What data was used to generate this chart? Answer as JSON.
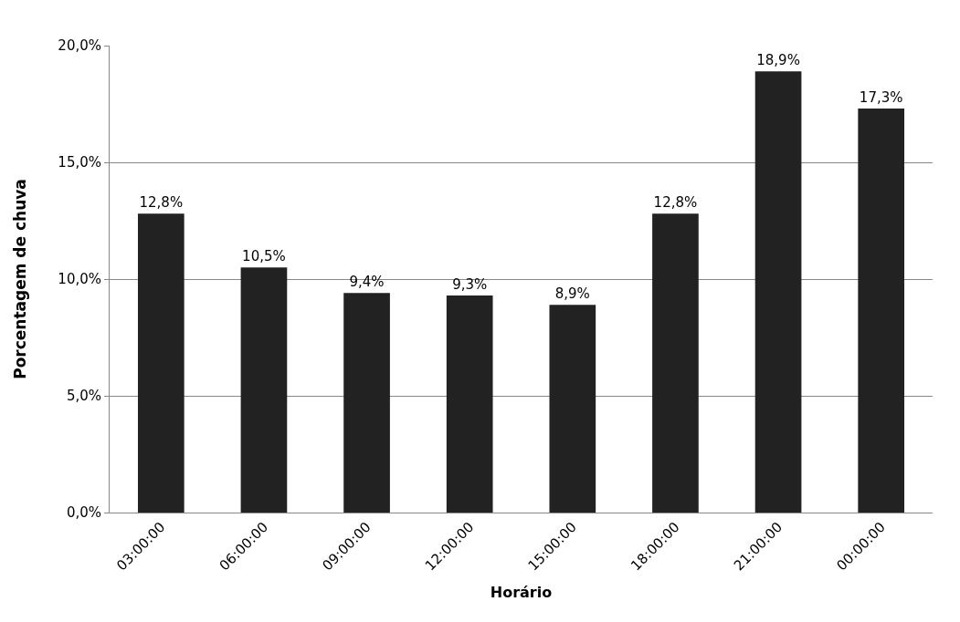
{
  "chart_data": {
    "type": "bar",
    "xlabel": "Horário",
    "ylabel": "Porcentagem de chuva",
    "categories": [
      "03:00:00",
      "06:00:00",
      "09:00:00",
      "12:00:00",
      "15:00:00",
      "18:00:00",
      "21:00:00",
      "00:00:00"
    ],
    "values": [
      12.8,
      10.5,
      9.4,
      9.3,
      8.9,
      12.8,
      18.9,
      17.3
    ],
    "value_labels": [
      "12,8%",
      "10,5%",
      "9,4%",
      "9,3%",
      "8,9%",
      "12,8%",
      "18,9%",
      "17,3%"
    ],
    "color": "#222222",
    "ylim": [
      0,
      20
    ],
    "yticks": [
      {
        "value": 0,
        "label": "0,0%"
      },
      {
        "value": 5,
        "label": "5,0%"
      },
      {
        "value": 10,
        "label": "10,0%"
      },
      {
        "value": 15,
        "label": "15,0%"
      },
      {
        "value": 20,
        "label": "20,0%"
      }
    ],
    "grid": "y",
    "legend": false
  }
}
